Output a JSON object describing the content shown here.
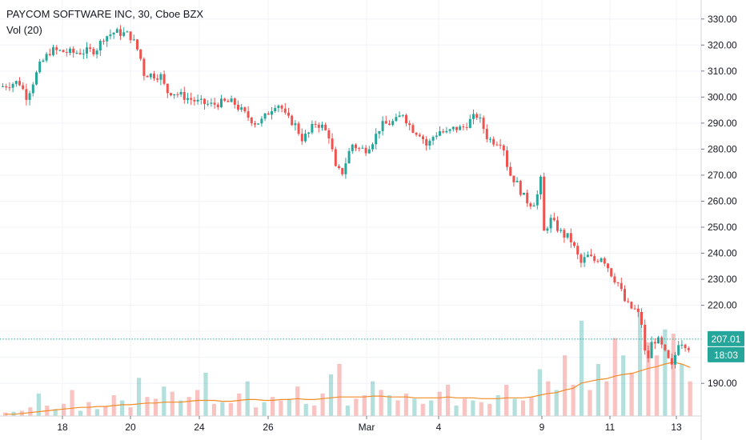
{
  "chart_data": {
    "type": "candlestick",
    "title": "PAYCOM SOFTWARE INC, 30, Cboe BZX",
    "indicator_label": "Vol (20)",
    "x_tick_labels": [
      "18",
      "20",
      "24",
      "26",
      "Mar",
      "4",
      "9",
      "11",
      "13"
    ],
    "y_ticks": [
      190,
      200,
      210,
      220,
      230,
      240,
      250,
      260,
      270,
      280,
      290,
      300,
      310,
      320,
      330
    ],
    "y_tick_labels": [
      "190.00",
      "",
      "",
      "220.00",
      "230.00",
      "240.00",
      "250.00",
      "260.00",
      "270.00",
      "280.00",
      "290.00",
      "300.00",
      "310.00",
      "320.00",
      "330.00"
    ],
    "ylim": [
      183,
      333
    ],
    "last_price": 207.01,
    "last_price_label": "207.01",
    "countdown_label": "18:03",
    "grid": true,
    "colors": {
      "up": "#26a69a",
      "down": "#ef5350",
      "volume_ma": "#f28c28",
      "price_line": "#26a69a"
    },
    "close_path": [
      [
        0,
        304
      ],
      [
        22,
        306
      ],
      [
        32,
        300
      ],
      [
        48,
        312
      ],
      [
        62,
        318
      ],
      [
        90,
        317
      ],
      [
        118,
        318
      ],
      [
        128,
        323
      ],
      [
        142,
        325
      ],
      [
        160,
        324
      ],
      [
        168,
        320
      ],
      [
        174,
        315
      ],
      [
        178,
        309
      ],
      [
        200,
        308
      ],
      [
        206,
        302
      ],
      [
        214,
        302
      ],
      [
        230,
        300
      ],
      [
        246,
        298
      ],
      [
        262,
        297
      ],
      [
        278,
        298
      ],
      [
        290,
        298
      ],
      [
        296,
        296
      ],
      [
        306,
        293
      ],
      [
        318,
        290
      ],
      [
        326,
        291
      ],
      [
        336,
        295
      ],
      [
        344,
        298
      ],
      [
        350,
        296
      ],
      [
        356,
        292
      ],
      [
        366,
        290
      ],
      [
        376,
        284
      ],
      [
        384,
        286
      ],
      [
        392,
        290
      ],
      [
        400,
        289
      ],
      [
        410,
        285
      ],
      [
        418,
        272
      ],
      [
        426,
        271
      ],
      [
        438,
        282
      ],
      [
        448,
        280
      ],
      [
        456,
        280
      ],
      [
        466,
        284
      ],
      [
        474,
        289
      ],
      [
        486,
        290
      ],
      [
        494,
        291
      ],
      [
        502,
        294
      ],
      [
        508,
        290
      ],
      [
        516,
        287
      ],
      [
        524,
        286
      ],
      [
        532,
        281
      ],
      [
        540,
        285
      ],
      [
        548,
        287
      ],
      [
        556,
        286
      ],
      [
        566,
        288
      ],
      [
        576,
        288
      ],
      [
        586,
        291
      ],
      [
        594,
        293
      ],
      [
        600,
        290
      ],
      [
        608,
        284
      ],
      [
        616,
        283
      ],
      [
        626,
        283
      ],
      [
        634,
        271
      ],
      [
        644,
        267
      ],
      [
        652,
        262
      ],
      [
        660,
        259
      ],
      [
        668,
        260
      ],
      [
        674,
        268
      ],
      [
        678,
        248
      ],
      [
        686,
        253
      ],
      [
        694,
        250
      ],
      [
        702,
        247
      ],
      [
        710,
        246
      ],
      [
        716,
        242
      ],
      [
        724,
        236
      ],
      [
        732,
        239
      ],
      [
        742,
        237
      ],
      [
        750,
        239
      ],
      [
        756,
        236
      ],
      [
        764,
        231
      ],
      [
        772,
        228
      ],
      [
        778,
        222
      ],
      [
        786,
        219
      ],
      [
        794,
        218
      ],
      [
        800,
        213
      ],
      [
        806,
        197
      ],
      [
        814,
        207
      ],
      [
        822,
        206
      ],
      [
        830,
        201
      ],
      [
        838,
        196
      ],
      [
        846,
        206
      ],
      [
        852,
        206
      ],
      [
        858,
        204
      ]
    ],
    "volume": {
      "ylim": [
        0,
        120
      ],
      "values": [
        4,
        5,
        6,
        10,
        26,
        12,
        8,
        14,
        30,
        6,
        16,
        8,
        11,
        24,
        18,
        10,
        44,
        22,
        20,
        34,
        28,
        18,
        22,
        30,
        50,
        14,
        16,
        15,
        26,
        40,
        10,
        16,
        22,
        18,
        20,
        34,
        14,
        12,
        26,
        48,
        60,
        12,
        20,
        24,
        40,
        30,
        24,
        18,
        26,
        20,
        14,
        18,
        28,
        36,
        12,
        20,
        18,
        16,
        14,
        24,
        36,
        20,
        18,
        22,
        54,
        40,
        30,
        70,
        36,
        110,
        30,
        60,
        40,
        90,
        70,
        50,
        120,
        85,
        70,
        100,
        95,
        60,
        40
      ],
      "ma_values": [
        2,
        2,
        3,
        4,
        5,
        6,
        7,
        8,
        9,
        10,
        10,
        11,
        11,
        12,
        13,
        13,
        14,
        15,
        15,
        16,
        16,
        16,
        17,
        18,
        18,
        18,
        17,
        17,
        18,
        19,
        19,
        18,
        18,
        19,
        19,
        20,
        19,
        19,
        20,
        21,
        22,
        22,
        22,
        22,
        23,
        23,
        22,
        22,
        22,
        21,
        21,
        21,
        21,
        22,
        21,
        21,
        21,
        20,
        20,
        20,
        21,
        21,
        21,
        22,
        24,
        26,
        27,
        30,
        32,
        38,
        40,
        42,
        43,
        46,
        48,
        49,
        52,
        55,
        57,
        60,
        62,
        60,
        56
      ]
    }
  }
}
